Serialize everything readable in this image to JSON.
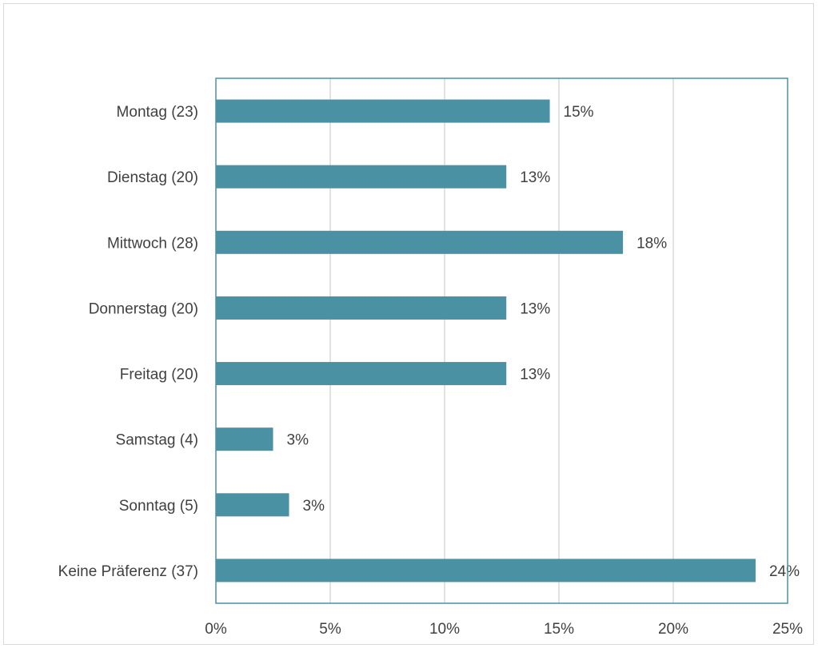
{
  "chart_data": {
    "type": "bar",
    "orientation": "horizontal",
    "categories": [
      "Montag (23)",
      "Dienstag (20)",
      "Mittwoch (28)",
      "Donnerstag (20)",
      "Freitag (20)",
      "Samstag (4)",
      "Sonntag (5)",
      "Keine Präferenz (37)"
    ],
    "values": [
      14.6,
      12.7,
      17.8,
      12.7,
      12.7,
      2.5,
      3.2,
      23.6
    ],
    "data_labels": [
      "15%",
      "13%",
      "18%",
      "13%",
      "13%",
      "3%",
      "3%",
      "24%"
    ],
    "x_ticks": [
      "0%",
      "5%",
      "10%",
      "15%",
      "20%",
      "25%"
    ],
    "xlim": [
      0,
      25
    ],
    "title": "",
    "xlabel": "",
    "ylabel": "",
    "grid": "vertical",
    "legend": "none",
    "colors": {
      "bar": "#4a91a4",
      "gridline": "#d9d9d9",
      "plot_border": "#4a91a4",
      "text": "#404040"
    }
  }
}
